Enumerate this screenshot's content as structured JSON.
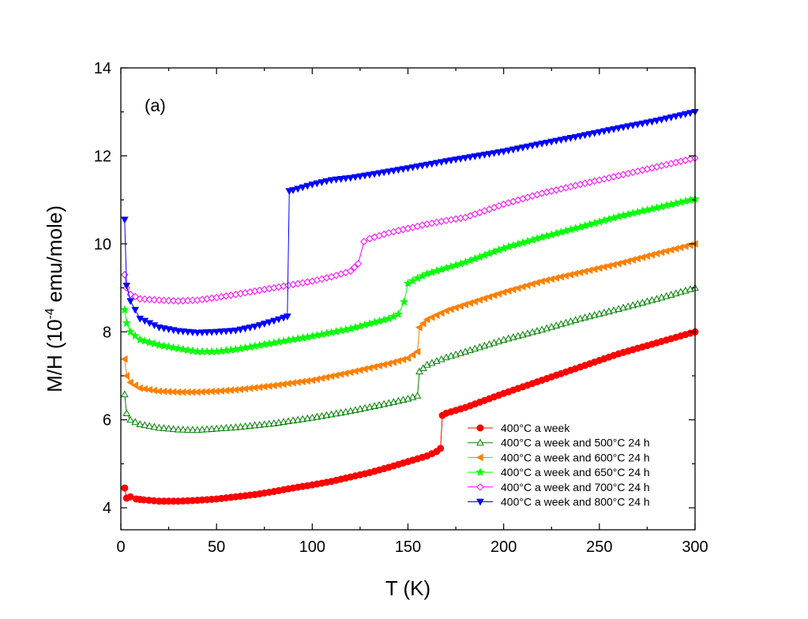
{
  "chart_data": {
    "type": "line",
    "title": "",
    "annotation": "(a)",
    "xlabel": "T (K)",
    "ylabel_main": "M/H (10",
    "ylabel_sup": "-4",
    "ylabel_tail": " emu/mole)",
    "xlim": [
      0,
      300
    ],
    "ylim": [
      3.5,
      14
    ],
    "xticks": [
      0,
      50,
      100,
      150,
      200,
      250,
      300
    ],
    "yticks": [
      4,
      6,
      8,
      10,
      12,
      14
    ],
    "grid": false,
    "legend_position": "bottom-right",
    "series": [
      {
        "name": "400°C a week",
        "color": "#ff0000",
        "marker": "circle",
        "filled": true,
        "points": [
          [
            2,
            4.45
          ],
          [
            3,
            4.22
          ],
          [
            5,
            4.25
          ],
          [
            8,
            4.2
          ],
          [
            12,
            4.18
          ],
          [
            20,
            4.15
          ],
          [
            30,
            4.15
          ],
          [
            40,
            4.17
          ],
          [
            50,
            4.2
          ],
          [
            60,
            4.25
          ],
          [
            70,
            4.3
          ],
          [
            80,
            4.37
          ],
          [
            90,
            4.45
          ],
          [
            100,
            4.52
          ],
          [
            110,
            4.6
          ],
          [
            120,
            4.7
          ],
          [
            130,
            4.8
          ],
          [
            140,
            4.92
          ],
          [
            150,
            5.05
          ],
          [
            160,
            5.18
          ],
          [
            165,
            5.28
          ],
          [
            167,
            5.35
          ],
          [
            168,
            6.1
          ],
          [
            170,
            6.15
          ],
          [
            180,
            6.28
          ],
          [
            200,
            6.6
          ],
          [
            220,
            6.9
          ],
          [
            240,
            7.2
          ],
          [
            260,
            7.5
          ],
          [
            280,
            7.75
          ],
          [
            300,
            8.0
          ]
        ]
      },
      {
        "name": "400°C a week and 500°C 24 h",
        "color": "#008000",
        "marker": "triangle-up",
        "filled": false,
        "points": [
          [
            2,
            6.58
          ],
          [
            3,
            6.15
          ],
          [
            5,
            6.0
          ],
          [
            10,
            5.9
          ],
          [
            20,
            5.82
          ],
          [
            30,
            5.78
          ],
          [
            40,
            5.77
          ],
          [
            50,
            5.8
          ],
          [
            60,
            5.83
          ],
          [
            80,
            5.92
          ],
          [
            100,
            6.05
          ],
          [
            120,
            6.2
          ],
          [
            140,
            6.38
          ],
          [
            150,
            6.48
          ],
          [
            155,
            6.55
          ],
          [
            156,
            7.1
          ],
          [
            160,
            7.25
          ],
          [
            170,
            7.42
          ],
          [
            180,
            7.55
          ],
          [
            200,
            7.82
          ],
          [
            220,
            8.05
          ],
          [
            240,
            8.3
          ],
          [
            260,
            8.52
          ],
          [
            280,
            8.75
          ],
          [
            300,
            9.0
          ]
        ]
      },
      {
        "name": "400°C a week and 600°C 24 h",
        "color": "#ff8000",
        "marker": "triangle-left",
        "filled": true,
        "points": [
          [
            2,
            7.38
          ],
          [
            3,
            7.0
          ],
          [
            5,
            6.85
          ],
          [
            10,
            6.72
          ],
          [
            20,
            6.65
          ],
          [
            30,
            6.63
          ],
          [
            40,
            6.63
          ],
          [
            50,
            6.65
          ],
          [
            60,
            6.68
          ],
          [
            80,
            6.78
          ],
          [
            100,
            6.9
          ],
          [
            120,
            7.08
          ],
          [
            140,
            7.28
          ],
          [
            150,
            7.4
          ],
          [
            155,
            7.55
          ],
          [
            156,
            8.1
          ],
          [
            160,
            8.28
          ],
          [
            170,
            8.48
          ],
          [
            180,
            8.62
          ],
          [
            200,
            8.9
          ],
          [
            220,
            9.15
          ],
          [
            240,
            9.35
          ],
          [
            260,
            9.55
          ],
          [
            280,
            9.78
          ],
          [
            300,
            10.0
          ]
        ]
      },
      {
        "name": "400°C a week and 650°C 24 h",
        "color": "#00ff00",
        "marker": "star",
        "filled": true,
        "points": [
          [
            2,
            8.5
          ],
          [
            3,
            8.2
          ],
          [
            5,
            8.0
          ],
          [
            10,
            7.82
          ],
          [
            20,
            7.7
          ],
          [
            30,
            7.62
          ],
          [
            40,
            7.55
          ],
          [
            50,
            7.55
          ],
          [
            60,
            7.6
          ],
          [
            80,
            7.75
          ],
          [
            100,
            7.9
          ],
          [
            120,
            8.07
          ],
          [
            140,
            8.3
          ],
          [
            145,
            8.4
          ],
          [
            148,
            8.68
          ],
          [
            150,
            9.1
          ],
          [
            155,
            9.22
          ],
          [
            160,
            9.32
          ],
          [
            170,
            9.45
          ],
          [
            180,
            9.58
          ],
          [
            200,
            9.9
          ],
          [
            220,
            10.15
          ],
          [
            240,
            10.38
          ],
          [
            260,
            10.62
          ],
          [
            280,
            10.82
          ],
          [
            300,
            11.02
          ]
        ]
      },
      {
        "name": "400°C a week and 700°C 24 h",
        "color": "#ff00ff",
        "marker": "diamond",
        "filled": false,
        "points": [
          [
            2,
            9.3
          ],
          [
            3,
            9.0
          ],
          [
            5,
            8.85
          ],
          [
            10,
            8.75
          ],
          [
            20,
            8.72
          ],
          [
            30,
            8.7
          ],
          [
            40,
            8.72
          ],
          [
            50,
            8.78
          ],
          [
            60,
            8.85
          ],
          [
            80,
            9.0
          ],
          [
            100,
            9.15
          ],
          [
            110,
            9.25
          ],
          [
            120,
            9.38
          ],
          [
            124,
            9.55
          ],
          [
            127,
            10.05
          ],
          [
            130,
            10.12
          ],
          [
            140,
            10.25
          ],
          [
            150,
            10.35
          ],
          [
            160,
            10.45
          ],
          [
            170,
            10.53
          ],
          [
            180,
            10.6
          ],
          [
            200,
            10.9
          ],
          [
            220,
            11.15
          ],
          [
            240,
            11.35
          ],
          [
            260,
            11.55
          ],
          [
            280,
            11.75
          ],
          [
            300,
            11.95
          ]
        ]
      },
      {
        "name": "400°C a week and 800°C 24 h",
        "color": "#0000ff",
        "marker": "triangle-down",
        "filled": true,
        "points": [
          [
            2,
            10.55
          ],
          [
            3,
            9.05
          ],
          [
            5,
            8.7
          ],
          [
            10,
            8.3
          ],
          [
            20,
            8.1
          ],
          [
            30,
            8.02
          ],
          [
            40,
            7.98
          ],
          [
            50,
            8.0
          ],
          [
            60,
            8.03
          ],
          [
            70,
            8.12
          ],
          [
            80,
            8.25
          ],
          [
            85,
            8.32
          ],
          [
            87,
            8.35
          ],
          [
            88,
            11.2
          ],
          [
            90,
            11.22
          ],
          [
            100,
            11.35
          ],
          [
            110,
            11.45
          ],
          [
            120,
            11.5
          ],
          [
            130,
            11.57
          ],
          [
            150,
            11.72
          ],
          [
            170,
            11.88
          ],
          [
            200,
            12.1
          ],
          [
            220,
            12.28
          ],
          [
            240,
            12.45
          ],
          [
            260,
            12.63
          ],
          [
            280,
            12.8
          ],
          [
            300,
            13.0
          ]
        ]
      }
    ]
  }
}
